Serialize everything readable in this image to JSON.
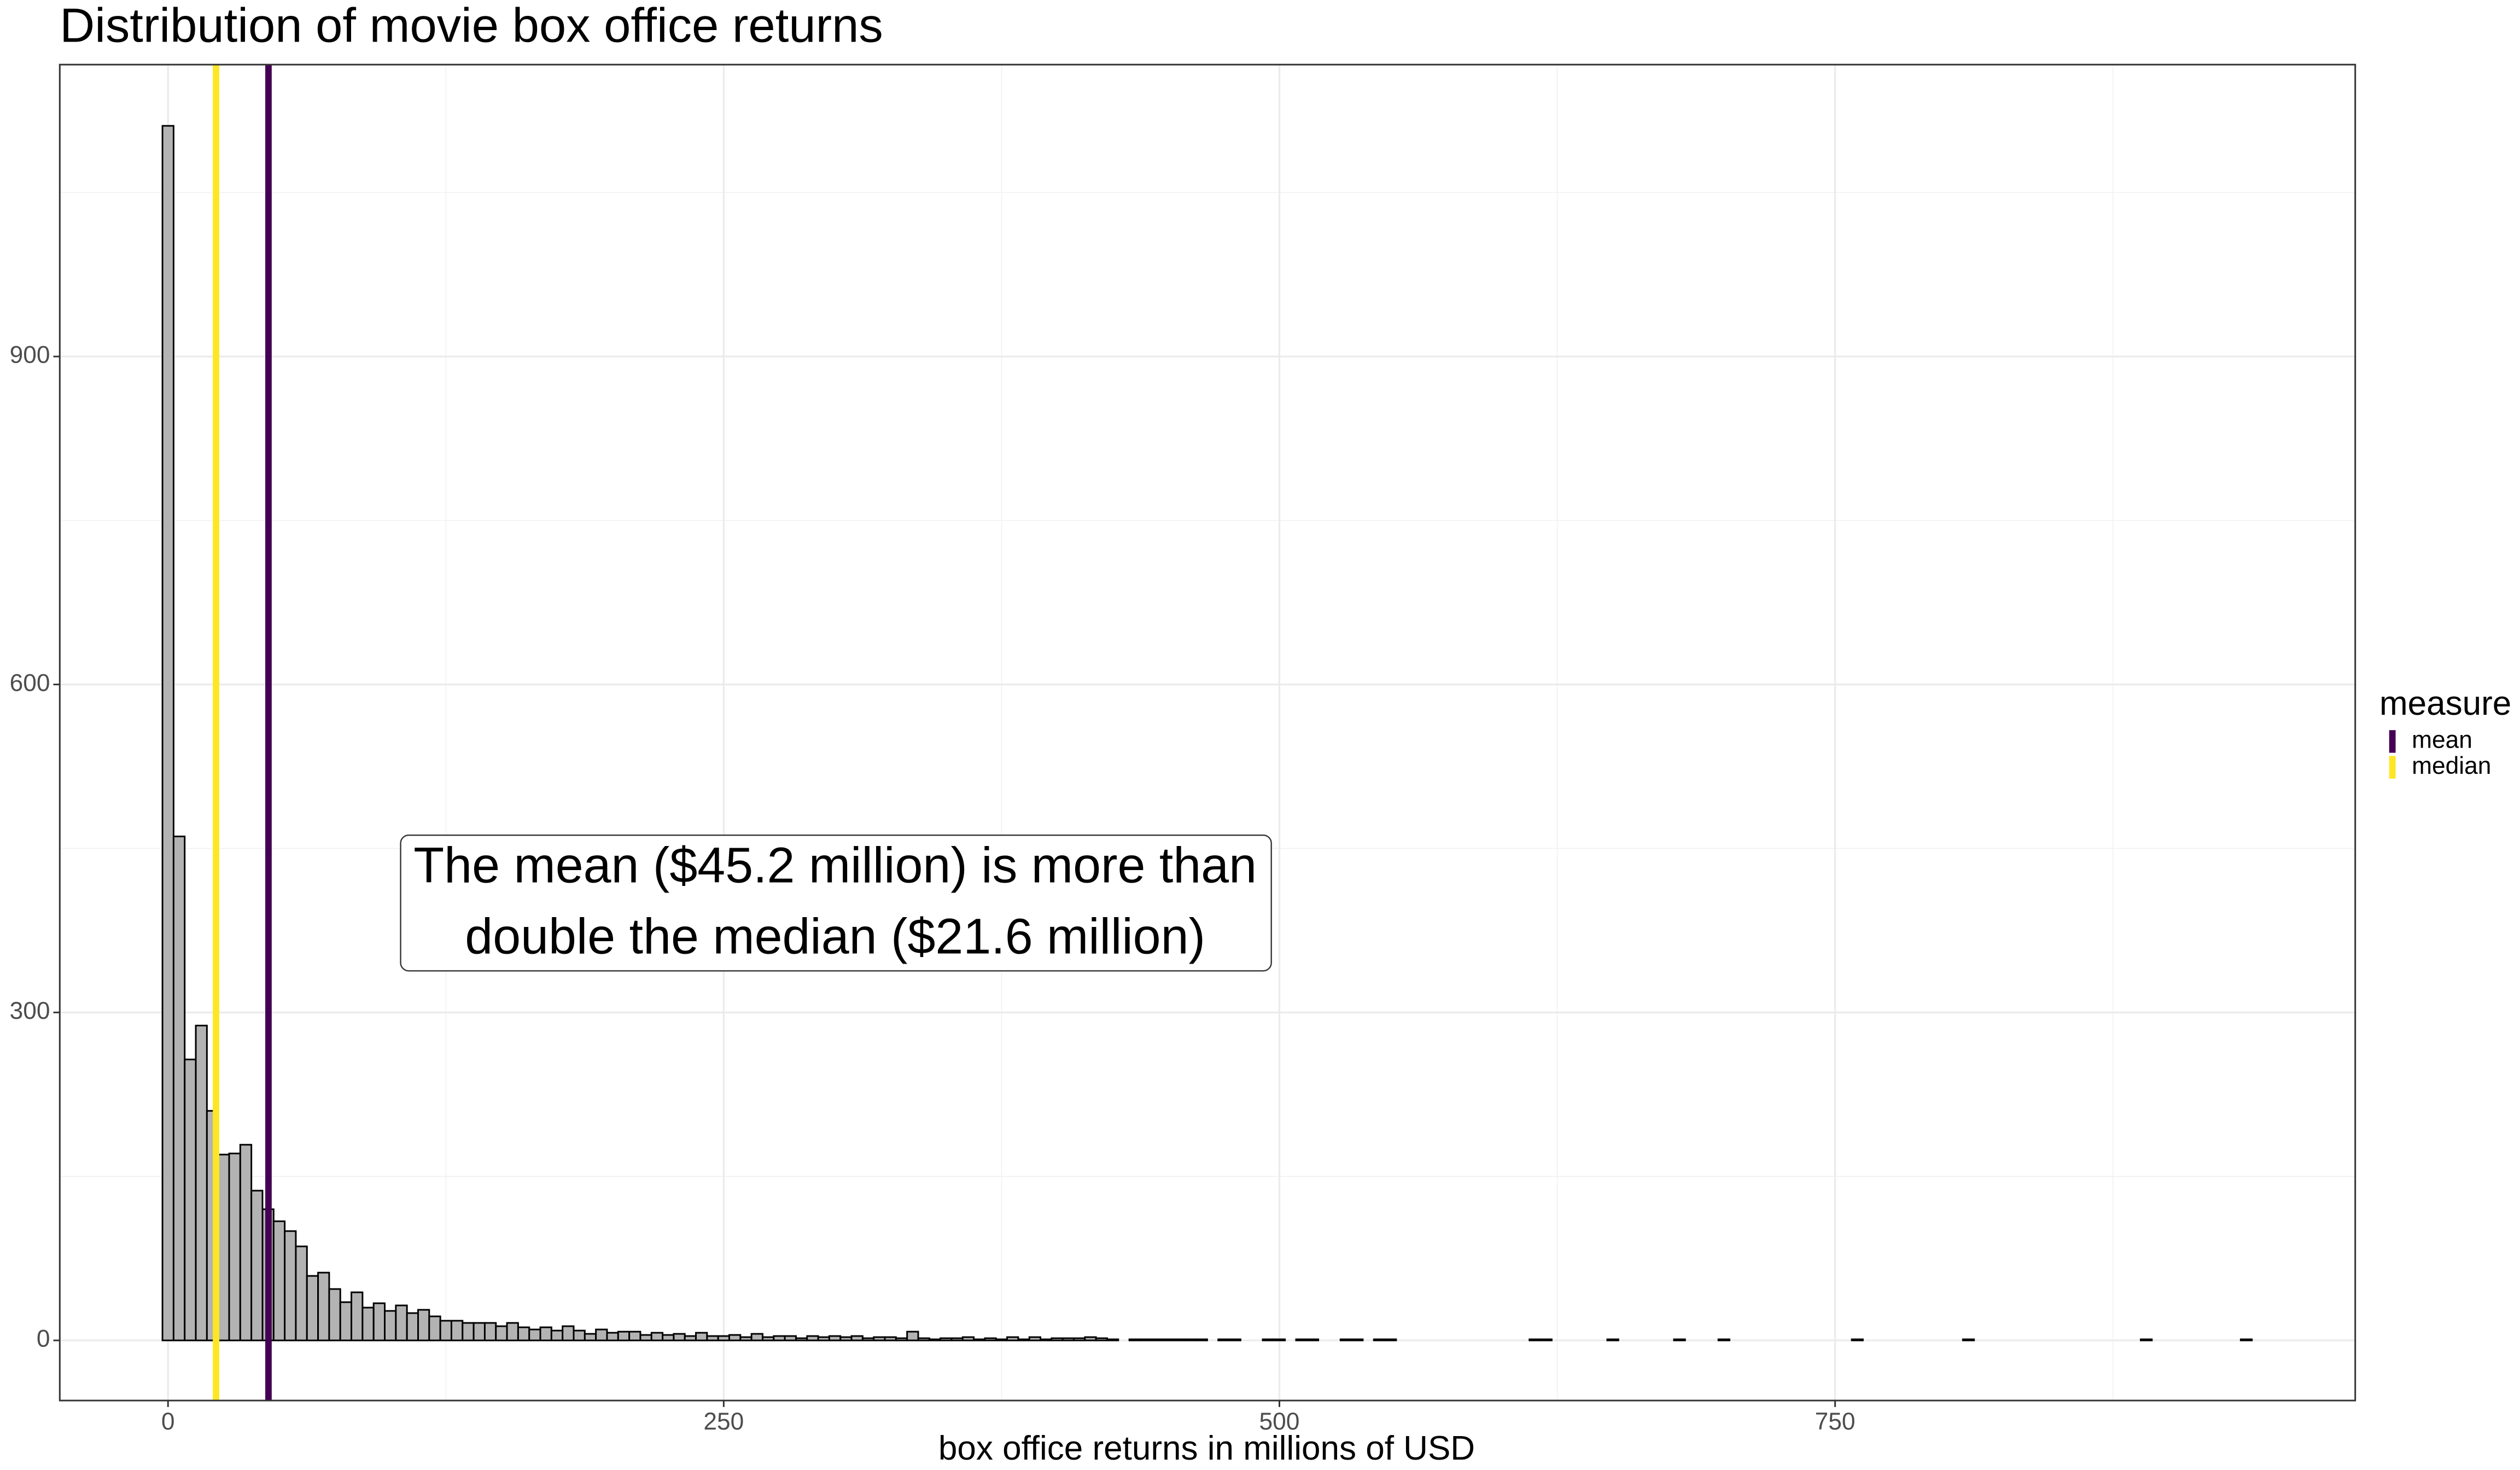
{
  "chart_data": {
    "type": "histogram",
    "title": "Distribution of movie box office returns",
    "xlabel": "box office returns in millions of USD",
    "fill": "#b3b3b3",
    "edgecolor": "#000000",
    "bins": [
      -2.5,
      2.5,
      7.5,
      12.5,
      17.5,
      22.5,
      27.5,
      32.5,
      37.5,
      42.5,
      47.5,
      52.5,
      57.5,
      62.5,
      67.5,
      72.5,
      77.5,
      82.5,
      87.5,
      92.5,
      97.5,
      102.5,
      107.5,
      112.5,
      117.5,
      122.5,
      127.5,
      132.5,
      137.5,
      142.5,
      147.5,
      152.5,
      157.5,
      162.5,
      167.5,
      172.5,
      177.5,
      182.5,
      187.5,
      192.5,
      197.5,
      202.5,
      207.5,
      212.5,
      217.5,
      222.5,
      227.5,
      232.5,
      237.5,
      242.5,
      247.5,
      252.5,
      257.5,
      262.5,
      267.5,
      272.5,
      277.5,
      282.5,
      287.5,
      292.5,
      297.5,
      302.5,
      307.5,
      312.5,
      317.5,
      322.5,
      327.5,
      332.5,
      337.5,
      342.5,
      347.5,
      352.5,
      357.5,
      362.5,
      367.5,
      372.5,
      377.5,
      382.5,
      387.5,
      392.5,
      397.5,
      402.5,
      407.5,
      412.5,
      417.5,
      422.5,
      427.5,
      432.5,
      437.5,
      442.5,
      447.5,
      452.5,
      457.5,
      462.5,
      467.5,
      472.5,
      477.5,
      482.5,
      487.5,
      492.5,
      497.5,
      502.5,
      507.5,
      512.5,
      517.5,
      522.5,
      527.5,
      532.5,
      537.5,
      542.5,
      547.5,
      552.5,
      557.5,
      562.5,
      567.5,
      572.5,
      577.5,
      582.5,
      587.5,
      592.5,
      597.5,
      602.5,
      607.5,
      612.5,
      617.5,
      622.5,
      627.5,
      632.5,
      637.5,
      642.5,
      647.5,
      652.5,
      657.5,
      662.5,
      667.5,
      672.5,
      677.5,
      682.5,
      687.5,
      692.5,
      697.5,
      702.5,
      707.5,
      712.5,
      717.5,
      722.5,
      727.5,
      732.5,
      737.5,
      742.5,
      747.5,
      752.5,
      757.5,
      762.5,
      767.5,
      772.5,
      777.5,
      782.5,
      787.5,
      792.5,
      797.5,
      802.5,
      807.5,
      812.5,
      817.5,
      822.5,
      827.5,
      832.5,
      837.5,
      842.5,
      847.5,
      852.5,
      857.5,
      862.5,
      867.5,
      872.5,
      877.5,
      882.5,
      887.5,
      892.5,
      897.5,
      902.5,
      907.5,
      912.5,
      917.5,
      922.5,
      927.5,
      932.5,
      937.5
    ],
    "counts": [
      1111,
      461,
      257,
      288,
      210,
      170,
      171,
      179,
      137,
      120,
      109,
      100,
      86,
      59,
      62,
      47,
      35,
      44,
      30,
      34,
      27,
      32,
      25,
      28,
      22,
      18,
      18,
      16,
      16,
      16,
      13,
      16,
      12,
      10,
      12,
      9,
      13,
      9,
      6,
      10,
      7,
      8,
      8,
      5,
      7,
      5,
      6,
      4,
      7,
      4,
      4,
      5,
      3,
      6,
      3,
      4,
      4,
      2,
      4,
      3,
      4,
      3,
      4,
      2,
      3,
      3,
      2,
      8,
      2,
      1,
      2,
      2,
      3,
      1,
      2,
      1,
      3,
      1,
      3,
      1,
      2,
      2,
      2,
      3,
      2,
      1,
      0,
      1,
      1,
      1,
      1,
      1,
      1,
      1,
      0,
      1,
      1,
      0,
      0,
      1,
      1,
      0,
      1,
      1,
      0,
      0,
      1,
      1,
      0,
      1,
      1,
      0,
      0,
      0,
      0,
      0,
      0,
      0,
      0,
      0,
      0,
      0,
      0,
      1,
      1,
      0,
      0,
      0,
      0,
      0,
      1,
      0,
      0,
      0,
      0,
      0,
      1,
      0,
      0,
      0,
      1,
      0,
      0,
      0,
      0,
      0,
      0,
      0,
      0,
      0,
      0,
      0,
      1,
      0,
      0,
      0,
      0,
      0,
      0,
      0,
      0,
      0,
      1,
      0,
      0,
      0,
      0,
      0,
      0,
      0,
      0,
      0,
      0,
      0,
      0,
      0,
      0,
      0,
      1,
      0,
      0,
      0,
      0,
      0,
      0,
      0,
      0,
      1
    ],
    "vlines": [
      {
        "name": "mean",
        "value": 45.2,
        "color": "#440154"
      },
      {
        "name": "median",
        "value": 21.6,
        "color": "#FDE725"
      }
    ],
    "legend_title": "measure",
    "annotation": [
      "The mean ($45.2 million) is more than",
      "double the median ($21.6 million)"
    ],
    "xlim": [
      -48.7,
      984
    ],
    "ylim": [
      -55,
      1167
    ],
    "xticks": [
      0,
      250,
      500,
      750
    ],
    "yticks": [
      0,
      300,
      600,
      900
    ],
    "grid": true
  }
}
